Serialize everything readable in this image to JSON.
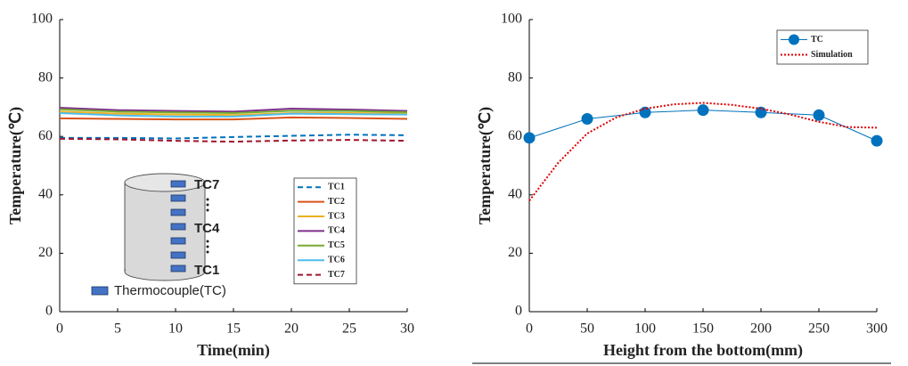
{
  "chart_data": [
    {
      "type": "line",
      "xlabel": "Time(min)",
      "ylabel": "Temperature(℃)",
      "x": [
        0,
        5,
        10,
        15,
        20,
        25,
        30
      ],
      "series": [
        {
          "name": "TC1",
          "color": "#0072bd",
          "linestyle": "dashed",
          "values": [
            59.5,
            59.5,
            59.3,
            59.8,
            60.2,
            60.6,
            60.4
          ]
        },
        {
          "name": "TC2",
          "color": "#d95319",
          "linestyle": "solid",
          "values": [
            66.2,
            66.0,
            65.8,
            65.8,
            66.5,
            66.3,
            66.0
          ]
        },
        {
          "name": "TC3",
          "color": "#edb120",
          "linestyle": "solid",
          "values": [
            68.5,
            67.8,
            67.5,
            67.3,
            68.0,
            68.0,
            67.8
          ]
        },
        {
          "name": "TC4",
          "color": "#7e2f8e",
          "linestyle": "solid",
          "values": [
            69.8,
            69.0,
            68.7,
            68.5,
            69.5,
            69.2,
            68.7
          ]
        },
        {
          "name": "TC5",
          "color": "#77ac30",
          "linestyle": "solid",
          "values": [
            69.3,
            68.5,
            68.2,
            68.0,
            68.8,
            68.7,
            68.3
          ]
        },
        {
          "name": "TC6",
          "color": "#4dbeee",
          "linestyle": "solid",
          "values": [
            68.0,
            67.2,
            66.8,
            66.8,
            67.8,
            67.6,
            67.5
          ]
        },
        {
          "name": "TC7",
          "color": "#a2142f",
          "linestyle": "dashed",
          "values": [
            59.2,
            59.0,
            58.5,
            58.2,
            58.6,
            58.8,
            58.5
          ]
        }
      ],
      "xlim": [
        0,
        30
      ],
      "xticks": [
        0,
        5,
        10,
        15,
        20,
        25,
        30
      ],
      "ylim": [
        0,
        100
      ],
      "yticks": [
        0,
        20,
        40,
        60,
        80,
        100
      ],
      "grid": false,
      "annotations": [
        "TC7",
        "TC4",
        "TC1",
        "Thermocouple(TC)"
      ]
    },
    {
      "type": "line",
      "xlabel": "Height from the bottom(mm)",
      "ylabel": "Temperature(℃)",
      "series": [
        {
          "name": "TC",
          "color": "#0072bd",
          "linestyle": "solid",
          "marker": "circle",
          "x": [
            0,
            50,
            100,
            150,
            200,
            250,
            300
          ],
          "values": [
            59.5,
            66,
            68.2,
            69,
            68.2,
            67.3,
            58.5
          ]
        },
        {
          "name": "Simulation",
          "color": "#e00000",
          "linestyle": "dotted",
          "x": [
            0,
            25,
            50,
            75,
            100,
            125,
            150,
            175,
            200,
            225,
            250,
            275,
            300
          ],
          "values": [
            38,
            51,
            61,
            66.5,
            69.5,
            71,
            71.5,
            70.8,
            69.5,
            67.5,
            65,
            63.2,
            63
          ]
        }
      ],
      "xlim": [
        0,
        300
      ],
      "xticks": [
        0,
        50,
        100,
        150,
        200,
        250,
        300
      ],
      "ylim": [
        0,
        100
      ],
      "yticks": [
        0,
        20,
        40,
        60,
        80,
        100
      ],
      "grid": false
    }
  ]
}
